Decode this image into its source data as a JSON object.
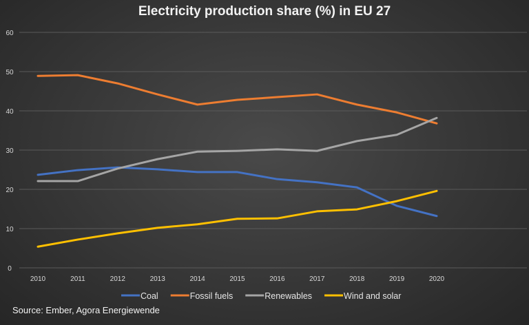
{
  "chart_data": {
    "type": "line",
    "title": "Electricity production share (%) in EU 27",
    "x": [
      "2010",
      "2011",
      "2012",
      "2013",
      "2014",
      "2015",
      "2016",
      "2017",
      "2018",
      "2019",
      "2020"
    ],
    "yticks": [
      "0",
      "10",
      "20",
      "30",
      "40",
      "50",
      "60"
    ],
    "ylim": [
      0,
      60
    ],
    "grid": true,
    "legend": "bottom",
    "series": [
      {
        "name": "Coal",
        "color": "#4472C4",
        "values": [
          23.7,
          24.9,
          25.6,
          25.1,
          24.4,
          24.4,
          22.6,
          21.8,
          20.5,
          15.8,
          13.2
        ]
      },
      {
        "name": "Fossil fuels",
        "color": "#ED7D31",
        "values": [
          48.9,
          49.1,
          47.0,
          44.2,
          41.6,
          42.8,
          43.5,
          44.2,
          41.6,
          39.6,
          36.8
        ]
      },
      {
        "name": "Renewables",
        "color": "#A5A5A5",
        "values": [
          22.1,
          22.1,
          25.3,
          27.7,
          29.6,
          29.8,
          30.2,
          29.8,
          32.3,
          33.9,
          38.2
        ]
      },
      {
        "name": "Wind and solar",
        "color": "#FFC000",
        "values": [
          5.4,
          7.2,
          8.8,
          10.2,
          11.1,
          12.5,
          12.6,
          14.4,
          14.9,
          17.0,
          19.6
        ]
      }
    ]
  },
  "source": "Source: Ember, Agora Energiewende"
}
